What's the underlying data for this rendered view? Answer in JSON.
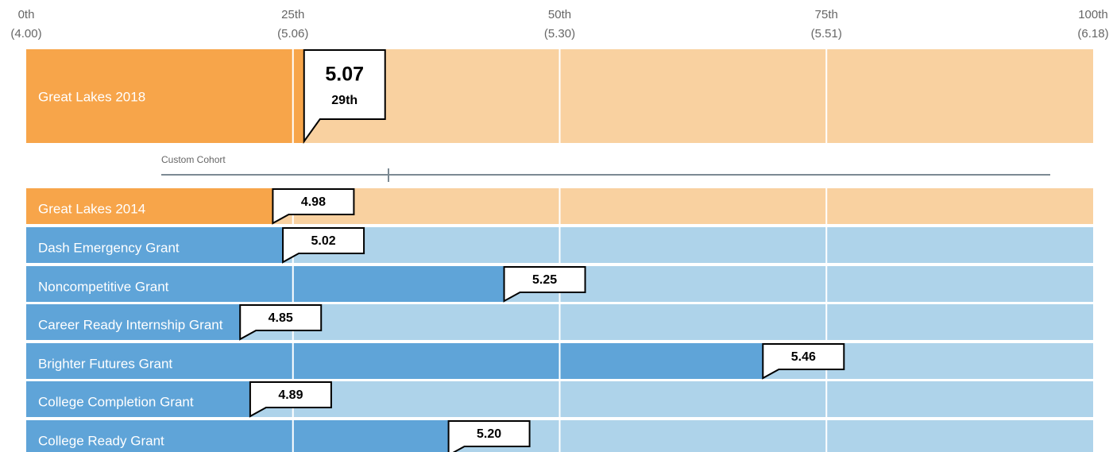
{
  "chart_data": {
    "type": "percentile-bar",
    "percentile_labels": [
      "0th",
      "25th",
      "50th",
      "75th",
      "100th"
    ],
    "xticks": [
      {
        "value": 4.0,
        "label": "(4.00)"
      },
      {
        "value": 5.06,
        "label": "(5.06)"
      },
      {
        "value": 5.3,
        "label": "(5.30)"
      },
      {
        "value": 5.51,
        "label": "(5.51)"
      },
      {
        "value": 6.18,
        "label": "(6.18)"
      }
    ],
    "featured": {
      "name": "Great Lakes 2018",
      "value": 5.07,
      "value_label": "5.07",
      "percentile_label": "29th",
      "color": "#f7a54a",
      "track_color": "#f9d1a0"
    },
    "cohort_label": "Custom Cohort",
    "rows": [
      {
        "name": "Great Lakes 2014",
        "value": 4.98,
        "value_label": "4.98",
        "color": "#f7a54a",
        "track_color": "#f9d1a0"
      },
      {
        "name": "Dash Emergency Grant",
        "value": 5.02,
        "value_label": "5.02",
        "color": "#5fa4d8",
        "track_color": "#aed3ea"
      },
      {
        "name": "Noncompetitive Grant",
        "value": 5.25,
        "value_label": "5.25",
        "color": "#5fa4d8",
        "track_color": "#aed3ea"
      },
      {
        "name": "Career Ready Internship Grant",
        "value": 4.85,
        "value_label": "4.85",
        "color": "#5fa4d8",
        "track_color": "#aed3ea"
      },
      {
        "name": "Brighter Futures Grant",
        "value": 5.46,
        "value_label": "5.46",
        "color": "#5fa4d8",
        "track_color": "#aed3ea"
      },
      {
        "name": "College Completion Grant",
        "value": 4.89,
        "value_label": "4.89",
        "color": "#5fa4d8",
        "track_color": "#aed3ea"
      },
      {
        "name": "College Ready Grant",
        "value": 5.2,
        "value_label": "5.20",
        "color": "#5fa4d8",
        "track_color": "#aed3ea"
      }
    ]
  }
}
